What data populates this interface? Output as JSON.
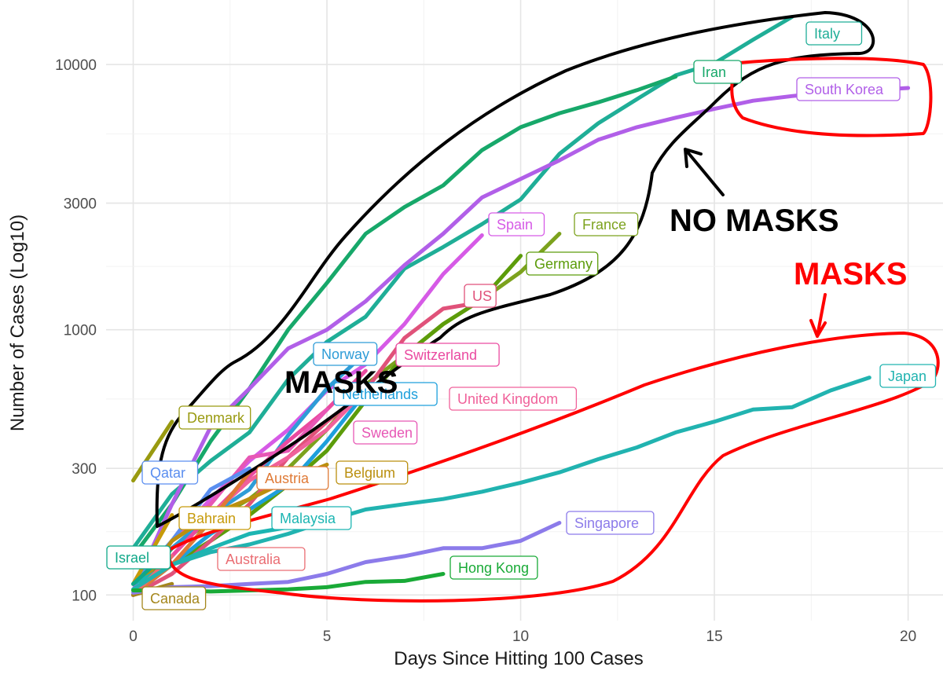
{
  "chart_data": {
    "type": "line",
    "title": "",
    "xlabel": "Days Since Hitting 100 Cases",
    "ylabel": "Number of Cases (Log10)",
    "xlim": [
      -0.7,
      20.9
    ],
    "ylim": [
      80,
      17500
    ],
    "yscale": "log10",
    "x_ticks": [
      0,
      5,
      10,
      15,
      20
    ],
    "y_ticks": [
      100,
      300,
      1000,
      3000,
      10000
    ],
    "grid": true,
    "series": [
      {
        "name": "Italy",
        "color": "#1fae97",
        "x": [
          0,
          1,
          2,
          3,
          4,
          5,
          6,
          7,
          8,
          9,
          10,
          11,
          12,
          13,
          14,
          15,
          16,
          17
        ],
        "y": [
          150,
          240,
          320,
          410,
          650,
          900,
          1120,
          1700,
          2050,
          2500,
          3100,
          4600,
          6000,
          7400,
          9100,
          10100,
          12400,
          15100
        ]
      },
      {
        "name": "Iran",
        "color": "#17a86a",
        "x": [
          0,
          1,
          2,
          3,
          4,
          5,
          6,
          7,
          8,
          9,
          10,
          11,
          12,
          13,
          14
        ],
        "y": [
          140,
          220,
          380,
          600,
          1000,
          1500,
          2300,
          2900,
          3500,
          4750,
          5800,
          6550,
          7200,
          8000,
          9000
        ]
      },
      {
        "name": "South Korea",
        "color": "#b15fe8",
        "x": [
          0,
          1,
          2,
          3,
          4,
          5,
          6,
          7,
          8,
          9,
          10,
          11,
          12,
          13,
          14,
          15,
          16,
          17,
          18,
          19,
          20
        ],
        "y": [
          104,
          220,
          430,
          600,
          850,
          1000,
          1280,
          1750,
          2300,
          3150,
          3700,
          4350,
          5200,
          5800,
          6300,
          6800,
          7300,
          7600,
          7850,
          8000,
          8150
        ]
      },
      {
        "name": "Spain",
        "color": "#d65ae6",
        "x": [
          0,
          1,
          2,
          3,
          4,
          5,
          6,
          7,
          8,
          9
        ],
        "y": [
          100,
          160,
          230,
          320,
          420,
          590,
          740,
          1050,
          1620,
          2270
        ]
      },
      {
        "name": "France",
        "color": "#7ca21d",
        "x": [
          0,
          1,
          2,
          3,
          4,
          5,
          6,
          7,
          8,
          9,
          10,
          11
        ],
        "y": [
          100,
          150,
          190,
          230,
          300,
          420,
          620,
          800,
          1050,
          1300,
          1650,
          2300
        ]
      },
      {
        "name": "Germany",
        "color": "#5c9c0a",
        "x": [
          0,
          1,
          2,
          3,
          4,
          5,
          6,
          7,
          8,
          9,
          10
        ],
        "y": [
          100,
          130,
          160,
          200,
          260,
          350,
          540,
          800,
          1050,
          1300,
          1900
        ]
      },
      {
        "name": "US",
        "color": "#e0527a",
        "x": [
          0,
          1,
          2,
          3,
          4,
          5,
          6,
          7,
          8,
          9
        ],
        "y": [
          100,
          120,
          160,
          220,
          330,
          450,
          590,
          930,
          1200,
          1270
        ]
      },
      {
        "name": "Norway",
        "color": "#2e9cd7",
        "x": [
          0,
          1,
          2,
          3,
          4,
          5,
          6
        ],
        "y": [
          110,
          150,
          200,
          250,
          400,
          600,
          820
        ]
      },
      {
        "name": "Switzerland",
        "color": "#ea4aa0",
        "x": [
          0,
          1,
          2,
          3,
          4,
          5,
          6
        ],
        "y": [
          100,
          140,
          200,
          280,
          380,
          500,
          700
        ]
      },
      {
        "name": "Netherlands",
        "color": "#1d9fdc",
        "x": [
          0,
          1,
          2,
          3,
          4,
          5,
          6
        ],
        "y": [
          100,
          130,
          170,
          210,
          260,
          380,
          580
        ]
      },
      {
        "name": "United Kingdom",
        "color": "#f0619a",
        "x": [
          0,
          1,
          2,
          3,
          4,
          5,
          6
        ],
        "y": [
          100,
          160,
          200,
          270,
          330,
          420,
          590
        ]
      },
      {
        "name": "Sweden",
        "color": "#e757b5",
        "x": [
          0,
          1,
          2,
          3,
          4,
          5
        ],
        "y": [
          100,
          160,
          220,
          330,
          350,
          500
        ]
      },
      {
        "name": "Denmark",
        "color": "#999a10",
        "x": [
          0,
          1
        ],
        "y": [
          270,
          450
        ]
      },
      {
        "name": "Qatar",
        "color": "#5a8ef0",
        "x": [
          0,
          1,
          2,
          3
        ],
        "y": [
          110,
          160,
          250,
          300
        ]
      },
      {
        "name": "Austria",
        "color": "#df7a36",
        "x": [
          0,
          1,
          2,
          3
        ],
        "y": [
          100,
          130,
          190,
          290
        ]
      },
      {
        "name": "Belgium",
        "color": "#ba8f0f",
        "x": [
          0,
          1,
          2,
          3,
          4,
          5
        ],
        "y": [
          100,
          160,
          200,
          230,
          270,
          310
        ]
      },
      {
        "name": "Bahrain",
        "color": "#c69a0a",
        "x": [
          0,
          1
        ],
        "y": [
          110,
          200
        ]
      },
      {
        "name": "Malaysia",
        "color": "#1cb5b2",
        "x": [
          0,
          1,
          2,
          3,
          4,
          5
        ],
        "y": [
          110,
          130,
          150,
          170,
          180,
          200
        ]
      },
      {
        "name": "Israel",
        "color": "#0fa888",
        "x": [
          0,
          1
        ],
        "y": [
          110,
          150
        ]
      },
      {
        "name": "Australia",
        "color": "#ea6d73",
        "x": [
          0,
          1
        ],
        "y": [
          100,
          140
        ]
      },
      {
        "name": "Canada",
        "color": "#a4861b",
        "x": [
          0,
          1
        ],
        "y": [
          100,
          110
        ]
      },
      {
        "name": "Japan",
        "color": "#21b3b0",
        "x": [
          0,
          1,
          2,
          3,
          4,
          5,
          6,
          7,
          8,
          9,
          10,
          11,
          12,
          13,
          14,
          15,
          16,
          17,
          18,
          19
        ],
        "y": [
          105,
          130,
          145,
          155,
          170,
          190,
          210,
          220,
          230,
          245,
          265,
          290,
          325,
          360,
          410,
          450,
          500,
          510,
          590,
          660
        ]
      },
      {
        "name": "Singapore",
        "color": "#8c7bea",
        "x": [
          0,
          1,
          2,
          3,
          4,
          5,
          6,
          7,
          8,
          9,
          10,
          11
        ],
        "y": [
          102,
          107,
          108,
          110,
          112,
          120,
          133,
          140,
          150,
          150,
          160,
          187
        ]
      },
      {
        "name": "Hong Kong",
        "color": "#19aa37",
        "x": [
          0,
          1,
          2,
          3,
          4,
          5,
          6,
          7,
          8
        ],
        "y": [
          104,
          104,
          103,
          104,
          105,
          107,
          112,
          113,
          120
        ]
      }
    ],
    "annotations": [
      {
        "text": "NO MASKS",
        "color": "#000000"
      },
      {
        "text": "MASKS",
        "color": "#ff0000"
      },
      {
        "text": "MASKS",
        "color": "#000000"
      }
    ]
  }
}
